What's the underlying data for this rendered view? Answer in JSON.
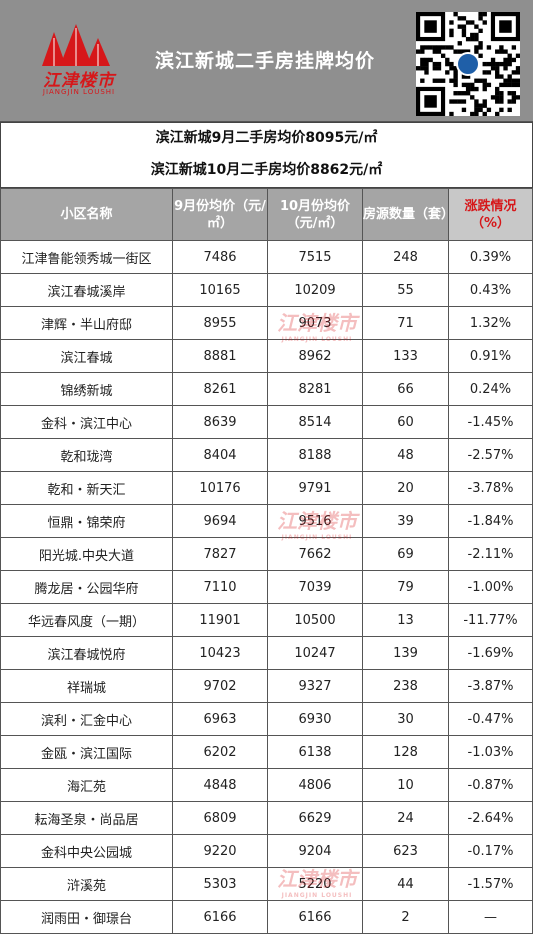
{
  "header": {
    "logo_text": "江津楼市",
    "logo_subtext": "JIANGJIN LOUSHI",
    "title": "滨江新城二手房挂牌均价"
  },
  "summary": {
    "september": "滨江新城9月二手房均价8095元/㎡",
    "october": "滨江新城10月二手房均价8862元/㎡"
  },
  "table": {
    "headers": {
      "name": "小区名称",
      "sep_price": "9月份均价（元/㎡）",
      "oct_price": "10月份均价（元/㎡）",
      "listings": "房源数量（套）",
      "change": "涨跌情况（%）"
    },
    "rows": [
      {
        "name": "江津鲁能领秀城一街区",
        "sep": "7486",
        "oct": "7515",
        "count": "248",
        "change": "0.39%",
        "trend": "up"
      },
      {
        "name": "滨江春城溪岸",
        "sep": "10165",
        "oct": "10209",
        "count": "55",
        "change": "0.43%",
        "trend": "up"
      },
      {
        "name": "津辉・半山府邸",
        "sep": "8955",
        "oct": "9073",
        "count": "71",
        "change": "1.32%",
        "trend": "up"
      },
      {
        "name": "滨江春城",
        "sep": "8881",
        "oct": "8962",
        "count": "133",
        "change": "0.91%",
        "trend": "up"
      },
      {
        "name": "锦绣新城",
        "sep": "8261",
        "oct": "8281",
        "count": "66",
        "change": "0.24%",
        "trend": "up"
      },
      {
        "name": "金科・滨江中心",
        "sep": "8639",
        "oct": "8514",
        "count": "60",
        "change": "-1.45%",
        "trend": "down"
      },
      {
        "name": "乾和珑湾",
        "sep": "8404",
        "oct": "8188",
        "count": "48",
        "change": "-2.57%",
        "trend": "down"
      },
      {
        "name": "乾和・新天汇",
        "sep": "10176",
        "oct": "9791",
        "count": "20",
        "change": "-3.78%",
        "trend": "down"
      },
      {
        "name": "恒鼎・锦荣府",
        "sep": "9694",
        "oct": "9516",
        "count": "39",
        "change": "-1.84%",
        "trend": "down"
      },
      {
        "name": "阳光城.中央大道",
        "sep": "7827",
        "oct": "7662",
        "count": "69",
        "change": "-2.11%",
        "trend": "down"
      },
      {
        "name": "腾龙居・公园华府",
        "sep": "7110",
        "oct": "7039",
        "count": "79",
        "change": "-1.00%",
        "trend": "down"
      },
      {
        "name": "华远春风度（一期）",
        "sep": "11901",
        "oct": "10500",
        "count": "13",
        "change": "-11.77%",
        "trend": "down"
      },
      {
        "name": "滨江春城悦府",
        "sep": "10423",
        "oct": "10247",
        "count": "139",
        "change": "-1.69%",
        "trend": "down"
      },
      {
        "name": "祥瑞城",
        "sep": "9702",
        "oct": "9327",
        "count": "238",
        "change": "-3.87%",
        "trend": "down"
      },
      {
        "name": "滨利・汇金中心",
        "sep": "6963",
        "oct": "6930",
        "count": "30",
        "change": "-0.47%",
        "trend": "down"
      },
      {
        "name": "金瓯・滨江国际",
        "sep": "6202",
        "oct": "6138",
        "count": "128",
        "change": "-1.03%",
        "trend": "down"
      },
      {
        "name": "海汇苑",
        "sep": "4848",
        "oct": "4806",
        "count": "10",
        "change": "-0.87%",
        "trend": "down"
      },
      {
        "name": "耘海圣泉・尚品居",
        "sep": "6809",
        "oct": "6629",
        "count": "24",
        "change": "-2.64%",
        "trend": "down"
      },
      {
        "name": "金科中央公园城",
        "sep": "9220",
        "oct": "9204",
        "count": "623",
        "change": "-0.17%",
        "trend": "down"
      },
      {
        "name": "浒溪苑",
        "sep": "5303",
        "oct": "5220",
        "count": "44",
        "change": "-1.57%",
        "trend": "down"
      },
      {
        "name": "润雨田・御璟台",
        "sep": "6166",
        "oct": "6166",
        "count": "2",
        "change": "—",
        "trend": "flat"
      }
    ]
  },
  "colors": {
    "header_bg": "#8f8f8f",
    "brand_red": "#d6171a",
    "up": "#c0181b",
    "down": "#1f3f7a"
  },
  "icons": {
    "logo": "building-logo-icon",
    "qr": "qr-code-icon"
  }
}
